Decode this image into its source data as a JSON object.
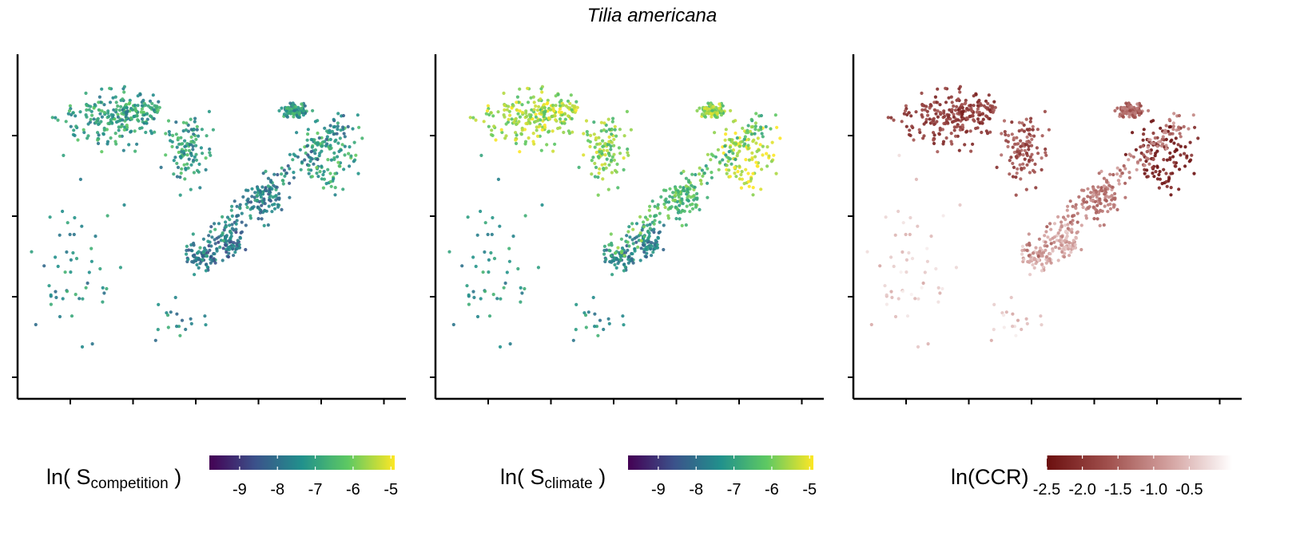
{
  "title": "Tilia americana",
  "colors": {
    "viridis": [
      "#440154",
      "#3b528b",
      "#21918c",
      "#5ec962",
      "#fde725"
    ],
    "reds": [
      "#6b0f0f",
      "#a0504d",
      "#d4a3a1",
      "#ffffff"
    ],
    "axis": "#000000"
  },
  "chart_data": [
    {
      "type": "scatter",
      "panel": "left",
      "variable": "ln(S_competition)",
      "legend": {
        "label_main": "ln( S",
        "label_sub": "competition",
        "label_end": " )",
        "colormap": "viridis",
        "range": [
          -9.8,
          -4.9
        ],
        "ticks": [
          -9,
          -8,
          -7,
          -6,
          -5
        ],
        "tick_labels": [
          "-9",
          "-8",
          "-7",
          "-6",
          "-5"
        ]
      },
      "x_ticks": 6,
      "y_ticks": 4,
      "tick_labels_shown": false
    },
    {
      "type": "scatter",
      "panel": "middle",
      "variable": "ln(S_climate)",
      "legend": {
        "label_main": "ln( S",
        "label_sub": "climate",
        "label_end": " )",
        "colormap": "viridis",
        "range": [
          -9.8,
          -4.9
        ],
        "ticks": [
          -9,
          -8,
          -7,
          -6,
          -5
        ],
        "tick_labels": [
          "-9",
          "-8",
          "-7",
          "-6",
          "-5"
        ]
      },
      "x_ticks": 6,
      "y_ticks": 4,
      "tick_labels_shown": false
    },
    {
      "type": "scatter",
      "panel": "right",
      "variable": "ln(CCR)",
      "legend": {
        "label_main": "ln(CCR)",
        "label_sub": "",
        "label_end": "",
        "colormap": "reds",
        "range": [
          -2.5,
          0.1
        ],
        "ticks": [
          -2.5,
          -2.0,
          -1.5,
          -1.0,
          -0.5
        ],
        "tick_labels": [
          "-2.5",
          "-2.0",
          "-1.5",
          "-1.0",
          "-0.5"
        ]
      },
      "x_ticks": 6,
      "y_ticks": 4,
      "tick_labels_shown": false
    }
  ]
}
